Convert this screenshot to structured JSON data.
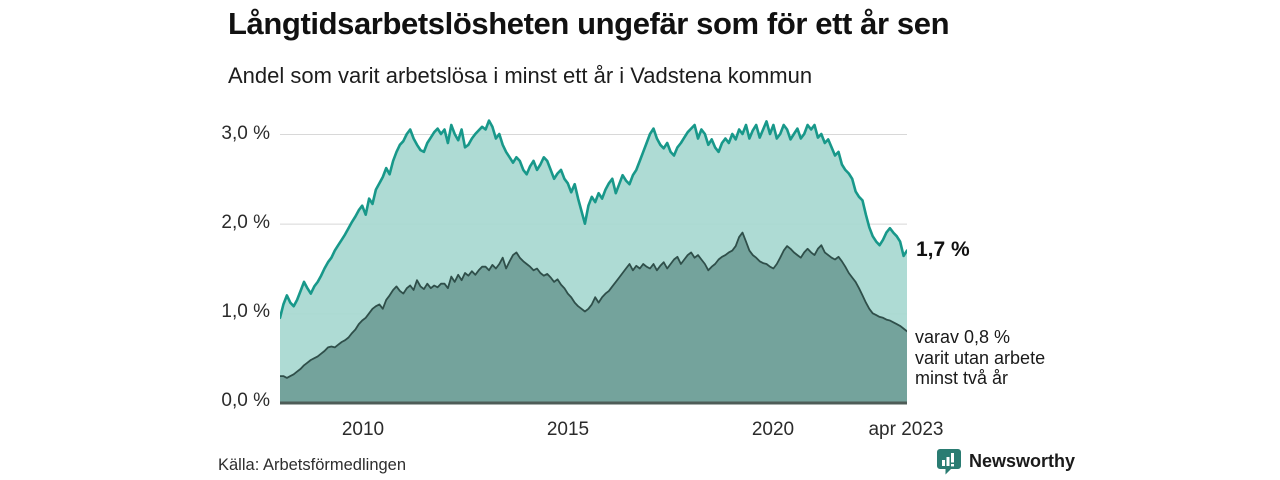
{
  "title": "Långtidsarbetslösheten ungefär som för ett år sen",
  "subtitle": "Andel som varit arbetslösa i minst ett år i Vadstena kommun",
  "source": "Källa: Arbetsförmedlingen",
  "branding": {
    "name": "Newsworthy",
    "color": "#2a7c72"
  },
  "annotations": {
    "latest_value": "1,7 %",
    "detail_lines": [
      "varav 0,8 %",
      "varit utan arbete",
      "minst två år"
    ]
  },
  "axes": {
    "y_ticks": [
      "3,0 %",
      "2,0 %",
      "1,0 %",
      "0,0 %"
    ],
    "x_ticks": [
      "2010",
      "2015",
      "2020",
      "apr 2023"
    ]
  },
  "chart_data": {
    "type": "area",
    "title": "Långtidsarbetslösheten ungefär som för ett år sen",
    "subtitle": "Andel som varit arbetslösa i minst ett år i Vadstena kommun",
    "unit": "%",
    "x_range": [
      2008.0,
      2023.25
    ],
    "x_step": 0.0833,
    "ylim": [
      0,
      3.2
    ],
    "grid_values": [
      1,
      2,
      3
    ],
    "x_tick_values": [
      2010,
      2015,
      2020,
      2023.25
    ],
    "x_tick_labels": [
      "2010",
      "2015",
      "2020",
      "apr 2023"
    ],
    "grid_color": "#d8d8d8",
    "baseline_color": "#4e5c57",
    "latest_point": {
      "x_label": "apr 2023",
      "minst_ett_ar": 1.7,
      "minst_tva_ar": 0.8
    },
    "series": [
      {
        "name": "Andel arbetslösa minst ett år",
        "line_color": "#18988a",
        "fill_color": "#a7d8d0",
        "line_width": 2.6,
        "values": [
          0.95,
          1.1,
          1.2,
          1.12,
          1.08,
          1.15,
          1.25,
          1.35,
          1.28,
          1.22,
          1.3,
          1.35,
          1.42,
          1.5,
          1.57,
          1.62,
          1.7,
          1.76,
          1.82,
          1.88,
          1.95,
          2.02,
          2.08,
          2.15,
          2.2,
          2.1,
          2.28,
          2.22,
          2.38,
          2.45,
          2.52,
          2.62,
          2.55,
          2.7,
          2.8,
          2.88,
          2.92,
          3.0,
          3.05,
          2.95,
          2.88,
          2.82,
          2.8,
          2.9,
          2.96,
          3.02,
          3.06,
          3.0,
          3.05,
          2.9,
          3.1,
          3.0,
          2.93,
          3.05,
          2.85,
          2.88,
          2.95,
          3.0,
          3.04,
          3.08,
          3.05,
          3.15,
          3.08,
          2.95,
          3.0,
          2.88,
          2.8,
          2.74,
          2.68,
          2.74,
          2.7,
          2.6,
          2.55,
          2.64,
          2.7,
          2.6,
          2.66,
          2.74,
          2.7,
          2.6,
          2.5,
          2.56,
          2.6,
          2.5,
          2.45,
          2.35,
          2.44,
          2.28,
          2.14,
          2.0,
          2.2,
          2.3,
          2.24,
          2.34,
          2.28,
          2.38,
          2.45,
          2.5,
          2.34,
          2.44,
          2.54,
          2.48,
          2.44,
          2.54,
          2.6,
          2.7,
          2.8,
          2.9,
          3.0,
          3.06,
          2.95,
          2.88,
          2.84,
          2.9,
          2.8,
          2.76,
          2.85,
          2.9,
          2.96,
          3.02,
          3.06,
          3.1,
          2.95,
          3.05,
          3.0,
          2.88,
          2.94,
          2.85,
          2.8,
          2.9,
          2.95,
          2.9,
          3.0,
          2.94,
          3.05,
          3.0,
          3.1,
          2.95,
          3.04,
          3.1,
          2.96,
          3.05,
          3.14,
          3.0,
          3.1,
          2.95,
          3.0,
          3.1,
          3.05,
          2.94,
          3.0,
          3.06,
          2.95,
          3.0,
          3.1,
          3.05,
          3.1,
          2.96,
          3.0,
          2.9,
          2.94,
          2.85,
          2.76,
          2.8,
          2.66,
          2.6,
          2.56,
          2.5,
          2.36,
          2.3,
          2.26,
          2.1,
          1.96,
          1.86,
          1.8,
          1.76,
          1.82,
          1.9,
          1.95,
          1.9,
          1.86,
          1.8,
          1.64,
          1.7
        ]
      },
      {
        "name": "varav utan arbete minst två år",
        "line_color": "#2f4f4a",
        "fill_color": "#6f9e97",
        "line_width": 1.8,
        "values": [
          0.3,
          0.3,
          0.28,
          0.3,
          0.32,
          0.35,
          0.38,
          0.42,
          0.45,
          0.48,
          0.5,
          0.52,
          0.55,
          0.58,
          0.62,
          0.63,
          0.62,
          0.65,
          0.68,
          0.7,
          0.73,
          0.78,
          0.82,
          0.88,
          0.92,
          0.95,
          1.0,
          1.05,
          1.08,
          1.1,
          1.05,
          1.15,
          1.2,
          1.26,
          1.3,
          1.25,
          1.22,
          1.28,
          1.31,
          1.26,
          1.37,
          1.3,
          1.27,
          1.33,
          1.28,
          1.31,
          1.29,
          1.33,
          1.33,
          1.28,
          1.41,
          1.35,
          1.43,
          1.37,
          1.45,
          1.42,
          1.47,
          1.43,
          1.48,
          1.52,
          1.52,
          1.48,
          1.54,
          1.5,
          1.55,
          1.62,
          1.5,
          1.58,
          1.65,
          1.68,
          1.62,
          1.58,
          1.55,
          1.52,
          1.48,
          1.5,
          1.45,
          1.42,
          1.44,
          1.4,
          1.35,
          1.38,
          1.32,
          1.28,
          1.22,
          1.18,
          1.12,
          1.08,
          1.05,
          1.02,
          1.05,
          1.1,
          1.18,
          1.12,
          1.18,
          1.22,
          1.25,
          1.3,
          1.35,
          1.4,
          1.45,
          1.5,
          1.55,
          1.48,
          1.53,
          1.5,
          1.55,
          1.52,
          1.5,
          1.55,
          1.48,
          1.53,
          1.57,
          1.5,
          1.55,
          1.6,
          1.63,
          1.55,
          1.6,
          1.65,
          1.68,
          1.62,
          1.65,
          1.6,
          1.55,
          1.48,
          1.52,
          1.55,
          1.6,
          1.63,
          1.65,
          1.68,
          1.7,
          1.75,
          1.85,
          1.9,
          1.8,
          1.7,
          1.65,
          1.62,
          1.58,
          1.56,
          1.55,
          1.52,
          1.5,
          1.55,
          1.62,
          1.7,
          1.75,
          1.72,
          1.68,
          1.65,
          1.62,
          1.68,
          1.72,
          1.68,
          1.65,
          1.72,
          1.76,
          1.68,
          1.65,
          1.62,
          1.6,
          1.63,
          1.58,
          1.52,
          1.45,
          1.4,
          1.35,
          1.28,
          1.2,
          1.12,
          1.05,
          1.0,
          0.98,
          0.96,
          0.95,
          0.93,
          0.92,
          0.9,
          0.88,
          0.86,
          0.83,
          0.8
        ]
      }
    ]
  }
}
